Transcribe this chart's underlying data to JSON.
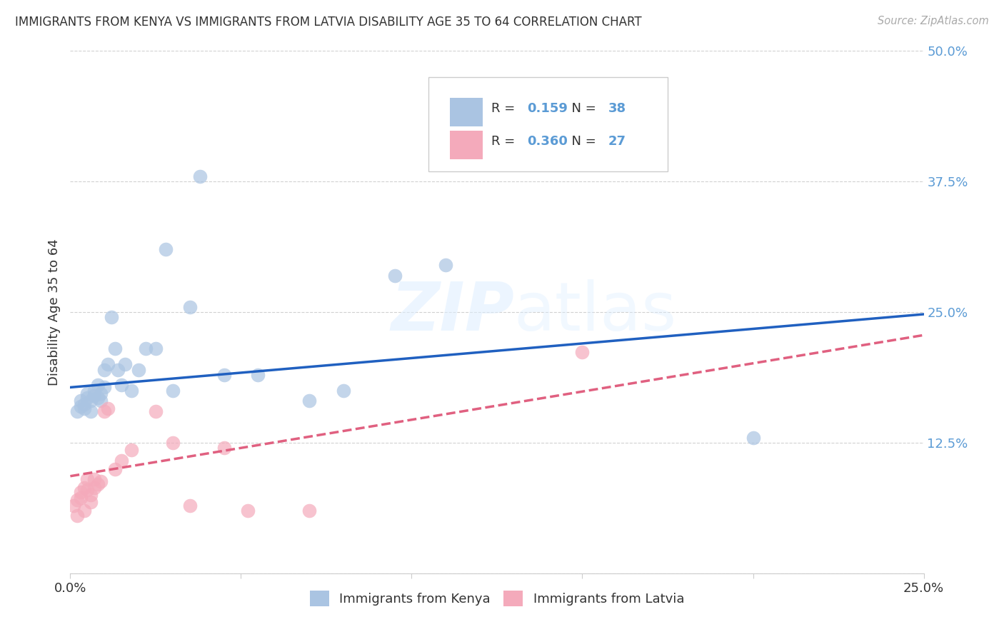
{
  "title": "IMMIGRANTS FROM KENYA VS IMMIGRANTS FROM LATVIA DISABILITY AGE 35 TO 64 CORRELATION CHART",
  "source": "Source: ZipAtlas.com",
  "ylabel": "Disability Age 35 to 64",
  "xlim": [
    0.0,
    0.25
  ],
  "ylim": [
    0.0,
    0.5
  ],
  "x_ticks": [
    0.0,
    0.05,
    0.1,
    0.15,
    0.2,
    0.25
  ],
  "y_ticks": [
    0.0,
    0.125,
    0.25,
    0.375,
    0.5
  ],
  "kenya_R": "0.159",
  "kenya_N": "38",
  "latvia_R": "0.360",
  "latvia_N": "27",
  "kenya_color": "#aac4e2",
  "latvia_color": "#f4aabb",
  "kenya_line_color": "#2060c0",
  "latvia_line_color": "#e06080",
  "watermark_zip": "ZIP",
  "watermark_atlas": "atlas",
  "kenya_points_x": [
    0.002,
    0.003,
    0.003,
    0.004,
    0.004,
    0.005,
    0.005,
    0.006,
    0.006,
    0.007,
    0.007,
    0.008,
    0.008,
    0.009,
    0.009,
    0.01,
    0.01,
    0.011,
    0.012,
    0.013,
    0.014,
    0.015,
    0.016,
    0.018,
    0.02,
    0.022,
    0.025,
    0.028,
    0.03,
    0.035,
    0.038,
    0.045,
    0.055,
    0.07,
    0.08,
    0.095,
    0.11,
    0.2
  ],
  "kenya_points_y": [
    0.155,
    0.16,
    0.165,
    0.162,
    0.158,
    0.168,
    0.172,
    0.155,
    0.165,
    0.17,
    0.175,
    0.168,
    0.18,
    0.172,
    0.165,
    0.178,
    0.195,
    0.2,
    0.245,
    0.215,
    0.195,
    0.18,
    0.2,
    0.175,
    0.195,
    0.215,
    0.215,
    0.31,
    0.175,
    0.255,
    0.38,
    0.19,
    0.19,
    0.165,
    0.175,
    0.285,
    0.295,
    0.13
  ],
  "latvia_points_x": [
    0.001,
    0.002,
    0.002,
    0.003,
    0.003,
    0.004,
    0.004,
    0.005,
    0.005,
    0.006,
    0.006,
    0.007,
    0.007,
    0.008,
    0.009,
    0.01,
    0.011,
    0.013,
    0.015,
    0.018,
    0.025,
    0.03,
    0.035,
    0.045,
    0.052,
    0.07,
    0.15
  ],
  "latvia_points_y": [
    0.065,
    0.055,
    0.07,
    0.078,
    0.072,
    0.06,
    0.082,
    0.08,
    0.09,
    0.068,
    0.075,
    0.082,
    0.09,
    0.085,
    0.088,
    0.155,
    0.158,
    0.1,
    0.108,
    0.118,
    0.155,
    0.125,
    0.065,
    0.12,
    0.06,
    0.06,
    0.212
  ],
  "kenya_line_x": [
    0.0,
    0.25
  ],
  "kenya_line_y": [
    0.178,
    0.248
  ],
  "latvia_line_x": [
    0.0,
    0.25
  ],
  "latvia_line_y": [
    0.093,
    0.228
  ],
  "grid_color": "#cccccc",
  "bg_color": "#ffffff"
}
